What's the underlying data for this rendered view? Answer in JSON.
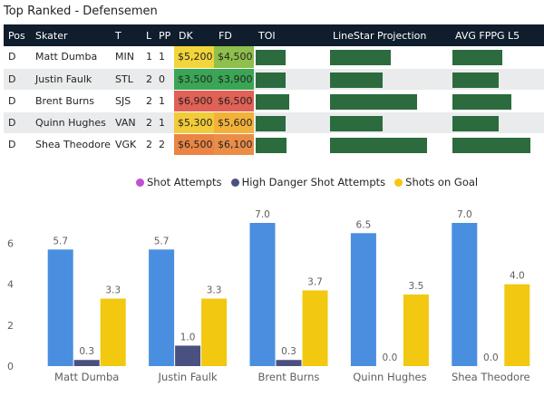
{
  "title": "Top Ranked - Defensemen",
  "table": {
    "headers": [
      "Pos",
      "Skater",
      "T",
      "L",
      "PP",
      "DK",
      "FD",
      "TOI",
      "LineStar Projection",
      "AVG FPPG L5"
    ],
    "rows": [
      {
        "pos": "D",
        "skater": "Matt Dumba",
        "team": "MIN",
        "line": "1",
        "pp": "1",
        "dk": "$5,200",
        "fd": "$4,500",
        "dk_color": "#f2d43c",
        "fd_color": "#8fbf4c",
        "toi": 0.42,
        "proj": 0.51,
        "fppg": 0.56
      },
      {
        "pos": "D",
        "skater": "Justin Faulk",
        "team": "STL",
        "line": "2",
        "pp": "0",
        "dk": "$3,500",
        "fd": "$3,900",
        "dk_color": "#3aa655",
        "fd_color": "#3aa655",
        "toi": 0.42,
        "proj": 0.44,
        "fppg": 0.52
      },
      {
        "pos": "D",
        "skater": "Brent Burns",
        "team": "SJS",
        "line": "2",
        "pp": "1",
        "dk": "$6,900",
        "fd": "$6,500",
        "dk_color": "#e06155",
        "fd_color": "#e06155",
        "toi": 0.48,
        "proj": 0.73,
        "fppg": 0.66
      },
      {
        "pos": "D",
        "skater": "Quinn Hughes",
        "team": "VAN",
        "line": "2",
        "pp": "1",
        "dk": "$5,300",
        "fd": "$5,600",
        "dk_color": "#f2cb3a",
        "fd_color": "#f3b13a",
        "toi": 0.42,
        "proj": 0.44,
        "fppg": 0.52
      },
      {
        "pos": "D",
        "skater": "Shea Theodore",
        "team": "VGK",
        "line": "2",
        "pp": "2",
        "dk": "$6,500",
        "fd": "$6,100",
        "dk_color": "#ea8546",
        "fd_color": "#ea8e47",
        "toi": 0.43,
        "proj": 0.82,
        "fppg": 0.87
      }
    ]
  },
  "chart_data": {
    "type": "bar",
    "categories": [
      "Matt Dumba",
      "Justin Faulk",
      "Brent Burns",
      "Quinn Hughes",
      "Shea Theodore"
    ],
    "series": [
      {
        "name": "Shot Attempts",
        "color": "#4a8ee0",
        "values": [
          5.7,
          5.7,
          7.0,
          6.5,
          7.0
        ]
      },
      {
        "name": "High Danger Shot Attempts",
        "color": "#4a5180",
        "values": [
          0.3,
          1.0,
          0.3,
          0.0,
          0.0
        ]
      },
      {
        "name": "Shots on Goal",
        "color": "#f2c811",
        "values": [
          3.3,
          3.3,
          3.7,
          3.5,
          4.0
        ]
      }
    ],
    "legend_dot_colors": [
      "#c44fd6",
      "#4a5180",
      "#f2c811"
    ],
    "yticks": [
      0,
      2,
      4,
      6
    ],
    "ylim": [
      0,
      7.0
    ],
    "grid": false,
    "legend_position": "top"
  }
}
